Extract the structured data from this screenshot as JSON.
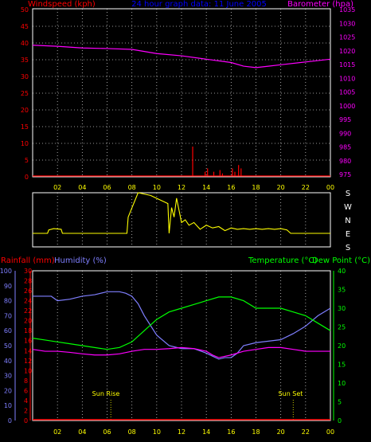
{
  "header": {
    "left": "Windspeed (kph)",
    "center": "24 hour graph data:  11 June 2005",
    "right": "Barometer (hpa)"
  },
  "labels": {
    "rainfall": "Rainfall (mm)",
    "humidity": "Humidity (%)",
    "temperature": "Temperature (°C)",
    "dewpoint": "Dew Point (°C)",
    "sunrise": "Sun Rise",
    "sunset": "Sun Set"
  },
  "colors": {
    "wind": "#ff0000",
    "barometer": "#ff00ff",
    "title": "#0000ff",
    "direction": "#ffff00",
    "rain": "#ff0000",
    "humidity": "#7f7fff",
    "temperature": "#00ff00",
    "dewpoint": "#ff00ff",
    "grid": "#ffffff",
    "hours": "#ffff00"
  },
  "chart_data": [
    {
      "type": "line",
      "x_ticks": [
        "02",
        "04",
        "06",
        "08",
        "10",
        "12",
        "14",
        "16",
        "18",
        "20",
        "22",
        "00"
      ],
      "axis_left": {
        "label": "Windspeed (kph)",
        "ticks": [
          "0",
          "5",
          "10",
          "15",
          "20",
          "25",
          "30",
          "35",
          "40",
          "45",
          "50"
        ],
        "range": [
          0,
          50
        ]
      },
      "axis_right": {
        "label": "Barometer (hpa)",
        "ticks": [
          "975",
          "980",
          "985",
          "990",
          "995",
          "1000",
          "1005",
          "1010",
          "1015",
          "1020",
          "1025",
          "1030",
          "1035"
        ],
        "range": [
          975,
          1035
        ]
      },
      "series": [
        {
          "name": "Barometer (hpa)",
          "axis": "right",
          "x": [
            0,
            2,
            4,
            6,
            8,
            10,
            12,
            14,
            16,
            17,
            18,
            19,
            20,
            22,
            24
          ],
          "y": [
            1022,
            1021.6,
            1021,
            1020.8,
            1020.5,
            1019,
            1018.2,
            1017,
            1015.8,
            1014.5,
            1014,
            1014.5,
            1015,
            1016,
            1017
          ]
        },
        {
          "name": "Windspeed (kph)",
          "axis": "left",
          "style": "spikes",
          "x": [
            12.9,
            13.9,
            14.1,
            14.6,
            15.1,
            15.3,
            16.1,
            16.3,
            16.6,
            16.8
          ],
          "y": [
            9,
            1.5,
            2.5,
            1.5,
            2,
            1,
            2.5,
            1.5,
            3.5,
            2.5
          ]
        }
      ]
    },
    {
      "type": "line",
      "x_ticks": [
        "02",
        "04",
        "06",
        "08",
        "10",
        "12",
        "14",
        "16",
        "18",
        "20",
        "22",
        "00"
      ],
      "axis_right": {
        "ticks": [
          "S",
          "E",
          "N",
          "W",
          "S"
        ]
      },
      "series": [
        {
          "name": "Wind direction",
          "axis": "right",
          "x": [
            0,
            1.2,
            1.3,
            1.7,
            2.3,
            2.4,
            7.6,
            7.7,
            8.5,
            9.5,
            10.2,
            10.9,
            11,
            11.2,
            11.4,
            11.6,
            12.0,
            12.3,
            12.6,
            13.0,
            13.5,
            14,
            14.5,
            15,
            15.5,
            16,
            16.5,
            17,
            17.5,
            18,
            18.5,
            19,
            19.5,
            20,
            20.5,
            20.8,
            24
          ],
          "y": [
            1,
            1,
            1.25,
            1.35,
            1.3,
            1,
            1,
            2.2,
            4,
            3.8,
            3.5,
            3.2,
            1,
            2.9,
            2.2,
            3.6,
            1.8,
            2.0,
            1.6,
            1.8,
            1.3,
            1.6,
            1.4,
            1.5,
            1.2,
            1.4,
            1.3,
            1.35,
            1.3,
            1.35,
            1.3,
            1.35,
            1.3,
            1.35,
            1.25,
            1,
            1
          ]
        }
      ]
    },
    {
      "type": "line",
      "x_ticks": [
        "02",
        "04",
        "06",
        "08",
        "10",
        "12",
        "14",
        "16",
        "18",
        "20",
        "22",
        "00"
      ],
      "axis_left_outer": {
        "label": "Rainfall (mm)",
        "ticks": [
          "0",
          "2",
          "4",
          "6",
          "8",
          "10",
          "12",
          "14",
          "16",
          "18",
          "20",
          "22",
          "24",
          "26",
          "28",
          "30"
        ],
        "range": [
          0,
          30
        ]
      },
      "axis_left_inner": {
        "label": "Humidity (%)",
        "ticks": [
          "0",
          "10",
          "20",
          "30",
          "40",
          "50",
          "60",
          "70",
          "80",
          "90",
          "100"
        ],
        "range": [
          0,
          100
        ]
      },
      "axis_right": {
        "label": "Temperature (°C)",
        "ticks": [
          "0",
          "5",
          "10",
          "15",
          "20",
          "25",
          "30",
          "35",
          "40"
        ],
        "range": [
          0,
          40
        ]
      },
      "series": [
        {
          "name": "Humidity (%)",
          "axis": "left_inner",
          "x": [
            0,
            1.5,
            2,
            3,
            4,
            5,
            6,
            7,
            7.5,
            8,
            8.5,
            9,
            10,
            11,
            12,
            13,
            14,
            14.5,
            15,
            15.5,
            16,
            16.5,
            17,
            18,
            19,
            20,
            21,
            22,
            23,
            24
          ],
          "y": [
            83,
            83,
            80,
            81,
            83,
            84,
            86,
            86,
            85,
            83,
            78,
            70,
            57,
            50,
            48,
            48,
            45,
            43,
            41,
            42,
            42,
            45,
            50,
            52,
            53,
            54,
            58,
            63,
            70,
            75
          ]
        },
        {
          "name": "Temperature (°C)",
          "axis": "right",
          "x": [
            0,
            1,
            2,
            3,
            4,
            5,
            6,
            7,
            8,
            9,
            10,
            11,
            12,
            13,
            14,
            15,
            16,
            17,
            18,
            19,
            20,
            21,
            22,
            23,
            24
          ],
          "y": [
            22,
            21.5,
            21,
            20.5,
            20,
            19.5,
            19,
            19.5,
            21,
            24,
            27,
            29,
            30,
            31,
            32,
            33,
            33,
            32,
            30,
            30,
            30,
            29,
            28,
            26,
            24
          ]
        },
        {
          "name": "Dew Point (°C)",
          "axis": "right",
          "x": [
            0,
            1,
            2,
            3,
            4,
            5,
            6,
            7,
            8,
            9,
            10,
            11,
            12,
            13,
            14,
            14.5,
            15,
            16,
            17,
            18,
            19,
            20,
            21,
            22,
            23,
            24
          ],
          "y": [
            19,
            18.5,
            18.5,
            18.2,
            17.8,
            17.5,
            17.5,
            17.8,
            18.5,
            19,
            19,
            19.2,
            19.5,
            19.2,
            18.5,
            17.5,
            16.8,
            17.5,
            18.5,
            19,
            19.5,
            19.5,
            19,
            18.5,
            18.5,
            18.5
          ]
        },
        {
          "name": "Rainfall (mm)",
          "axis": "left_outer",
          "x": [
            0,
            24
          ],
          "y": [
            0,
            0
          ]
        }
      ],
      "markers": [
        {
          "label": "Sun Rise",
          "x": 6.3
        },
        {
          "label": "Sun Set",
          "x": 21.0
        }
      ]
    }
  ]
}
